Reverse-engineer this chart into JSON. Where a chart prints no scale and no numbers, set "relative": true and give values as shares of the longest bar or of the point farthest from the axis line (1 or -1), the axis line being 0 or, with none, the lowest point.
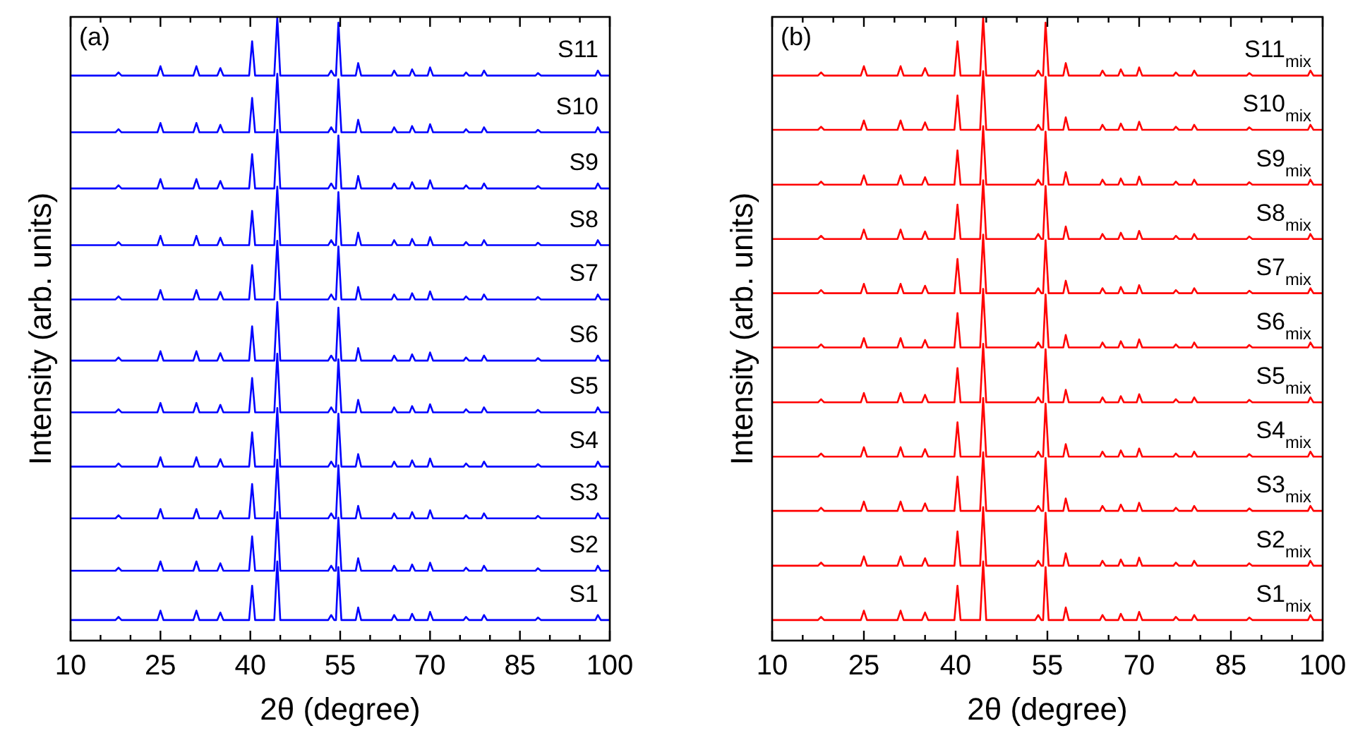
{
  "chart_data": [
    {
      "type": "line",
      "title": "(a)",
      "xlabel": "2θ (degree)",
      "ylabel": "Intensity (arb. units)",
      "relative": true,
      "xlim": [
        10,
        100
      ],
      "xticks": [
        10,
        {
          "value": 15,
          "label": null
        },
        {
          "value": 20,
          "label": null
        },
        25,
        {
          "value": 30,
          "label": null
        },
        {
          "value": 35,
          "label": null
        },
        40,
        {
          "value": 45,
          "label": null
        },
        {
          "value": 50,
          "label": null
        },
        55,
        {
          "value": 60,
          "label": null
        },
        {
          "value": 65,
          "label": null
        },
        70,
        {
          "value": 75,
          "label": null
        },
        {
          "value": 80,
          "label": null
        },
        85,
        {
          "value": 90,
          "label": null
        },
        {
          "value": 95,
          "label": null
        },
        100
      ],
      "x": [
        10,
        17.5,
        18,
        18.5,
        24.5,
        25,
        25.5,
        30.5,
        31,
        31.5,
        34.5,
        35,
        35.5,
        39.8,
        40.3,
        40.8,
        44,
        44.5,
        45,
        53,
        53.5,
        54,
        54.3,
        54.7,
        55.2,
        57.6,
        58,
        58.5,
        63.6,
        64,
        64.5,
        66.6,
        67,
        67.5,
        69.6,
        70,
        70.5,
        75.6,
        76,
        76.5,
        78.6,
        79,
        79.5,
        87.6,
        88,
        88.5,
        97.6,
        98,
        98.5,
        100
      ],
      "series": [
        {
          "name": "S1",
          "color": "#0000ff",
          "values": [
            0.033,
            0.033,
            0.038,
            0.033,
            0.033,
            0.048,
            0.033,
            0.033,
            0.048,
            0.033,
            0.033,
            0.045,
            0.033,
            0.033,
            0.088,
            0.033,
            0.033,
            0.127,
            0.033,
            0.033,
            0.041,
            0.033,
            0.033,
            0.118,
            0.033,
            0.033,
            0.053,
            0.033,
            0.033,
            0.041,
            0.033,
            0.033,
            0.043,
            0.033,
            0.033,
            0.046,
            0.033,
            0.033,
            0.038,
            0.033,
            0.033,
            0.041,
            0.033,
            0.033,
            0.037,
            0.033,
            0.033,
            0.041,
            0.033,
            0.033
          ]
        },
        {
          "name": "S2",
          "color": "#0000ff",
          "values": [
            0.112,
            0.112,
            0.117,
            0.112,
            0.112,
            0.127,
            0.112,
            0.112,
            0.127,
            0.112,
            0.112,
            0.124,
            0.112,
            0.112,
            0.167,
            0.112,
            0.112,
            0.206,
            0.112,
            0.112,
            0.12,
            0.112,
            0.112,
            0.197,
            0.112,
            0.112,
            0.132,
            0.112,
            0.112,
            0.12,
            0.112,
            0.112,
            0.122,
            0.112,
            0.112,
            0.125,
            0.112,
            0.112,
            0.117,
            0.112,
            0.112,
            0.12,
            0.112,
            0.112,
            0.116,
            0.112,
            0.112,
            0.12,
            0.112,
            0.112
          ]
        },
        {
          "name": "S3",
          "color": "#0000ff",
          "values": [
            0.196,
            0.196,
            0.201,
            0.196,
            0.196,
            0.211,
            0.196,
            0.196,
            0.211,
            0.196,
            0.196,
            0.208,
            0.196,
            0.196,
            0.251,
            0.196,
            0.196,
            0.29,
            0.196,
            0.196,
            0.204,
            0.196,
            0.196,
            0.281,
            0.196,
            0.196,
            0.216,
            0.196,
            0.196,
            0.204,
            0.196,
            0.196,
            0.206,
            0.196,
            0.196,
            0.209,
            0.196,
            0.196,
            0.201,
            0.196,
            0.196,
            0.204,
            0.196,
            0.196,
            0.2,
            0.196,
            0.196,
            0.204,
            0.196,
            0.196
          ]
        },
        {
          "name": "S4",
          "color": "#0000ff",
          "values": [
            0.279,
            0.279,
            0.284,
            0.279,
            0.279,
            0.294,
            0.279,
            0.279,
            0.294,
            0.279,
            0.279,
            0.291,
            0.279,
            0.279,
            0.334,
            0.279,
            0.279,
            0.373,
            0.279,
            0.279,
            0.287,
            0.279,
            0.279,
            0.364,
            0.279,
            0.279,
            0.299,
            0.279,
            0.279,
            0.287,
            0.279,
            0.279,
            0.289,
            0.279,
            0.279,
            0.292,
            0.279,
            0.279,
            0.284,
            0.279,
            0.279,
            0.287,
            0.279,
            0.279,
            0.283,
            0.279,
            0.279,
            0.287,
            0.279,
            0.279
          ]
        },
        {
          "name": "S5",
          "color": "#0000ff",
          "values": [
            0.366,
            0.366,
            0.371,
            0.366,
            0.366,
            0.381,
            0.366,
            0.366,
            0.381,
            0.366,
            0.366,
            0.378,
            0.366,
            0.366,
            0.421,
            0.366,
            0.366,
            0.46,
            0.366,
            0.366,
            0.374,
            0.366,
            0.366,
            0.451,
            0.366,
            0.366,
            0.386,
            0.366,
            0.366,
            0.374,
            0.366,
            0.366,
            0.376,
            0.366,
            0.366,
            0.379,
            0.366,
            0.366,
            0.371,
            0.366,
            0.366,
            0.374,
            0.366,
            0.366,
            0.37,
            0.366,
            0.366,
            0.374,
            0.366,
            0.366
          ]
        },
        {
          "name": "S6",
          "color": "#0000ff",
          "values": [
            0.449,
            0.449,
            0.454,
            0.449,
            0.449,
            0.464,
            0.449,
            0.449,
            0.464,
            0.449,
            0.449,
            0.461,
            0.449,
            0.449,
            0.504,
            0.449,
            0.449,
            0.543,
            0.449,
            0.449,
            0.457,
            0.449,
            0.449,
            0.534,
            0.449,
            0.449,
            0.469,
            0.449,
            0.449,
            0.457,
            0.449,
            0.449,
            0.459,
            0.449,
            0.449,
            0.462,
            0.449,
            0.449,
            0.454,
            0.449,
            0.449,
            0.457,
            0.449,
            0.449,
            0.453,
            0.449,
            0.449,
            0.457,
            0.449,
            0.449
          ]
        },
        {
          "name": "S7",
          "color": "#0000ff",
          "values": [
            0.547,
            0.547,
            0.552,
            0.547,
            0.547,
            0.562,
            0.547,
            0.547,
            0.562,
            0.547,
            0.547,
            0.559,
            0.547,
            0.547,
            0.602,
            0.547,
            0.547,
            0.641,
            0.547,
            0.547,
            0.555,
            0.547,
            0.547,
            0.632,
            0.547,
            0.547,
            0.567,
            0.547,
            0.547,
            0.555,
            0.547,
            0.547,
            0.557,
            0.547,
            0.547,
            0.56,
            0.547,
            0.547,
            0.552,
            0.547,
            0.547,
            0.555,
            0.547,
            0.547,
            0.551,
            0.547,
            0.547,
            0.555,
            0.547,
            0.547
          ]
        },
        {
          "name": "S8",
          "color": "#0000ff",
          "values": [
            0.634,
            0.634,
            0.639,
            0.634,
            0.634,
            0.649,
            0.634,
            0.634,
            0.649,
            0.634,
            0.634,
            0.646,
            0.634,
            0.634,
            0.689,
            0.634,
            0.634,
            0.728,
            0.634,
            0.634,
            0.642,
            0.634,
            0.634,
            0.719,
            0.634,
            0.634,
            0.654,
            0.634,
            0.634,
            0.642,
            0.634,
            0.634,
            0.644,
            0.634,
            0.634,
            0.647,
            0.634,
            0.634,
            0.639,
            0.634,
            0.634,
            0.642,
            0.634,
            0.634,
            0.638,
            0.634,
            0.634,
            0.642,
            0.634,
            0.634
          ]
        },
        {
          "name": "S9",
          "color": "#0000ff",
          "values": [
            0.725,
            0.725,
            0.73,
            0.725,
            0.725,
            0.74,
            0.725,
            0.725,
            0.74,
            0.725,
            0.725,
            0.737,
            0.725,
            0.725,
            0.78,
            0.725,
            0.725,
            0.819,
            0.725,
            0.725,
            0.733,
            0.725,
            0.725,
            0.81,
            0.725,
            0.725,
            0.745,
            0.725,
            0.725,
            0.733,
            0.725,
            0.725,
            0.735,
            0.725,
            0.725,
            0.738,
            0.725,
            0.725,
            0.73,
            0.725,
            0.725,
            0.733,
            0.725,
            0.725,
            0.729,
            0.725,
            0.725,
            0.733,
            0.725,
            0.725
          ]
        },
        {
          "name": "S10",
          "color": "#0000ff",
          "values": [
            0.815,
            0.815,
            0.82,
            0.815,
            0.815,
            0.83,
            0.815,
            0.815,
            0.83,
            0.815,
            0.815,
            0.827,
            0.815,
            0.815,
            0.87,
            0.815,
            0.815,
            0.909,
            0.815,
            0.815,
            0.823,
            0.815,
            0.815,
            0.9,
            0.815,
            0.815,
            0.835,
            0.815,
            0.815,
            0.823,
            0.815,
            0.815,
            0.825,
            0.815,
            0.815,
            0.828,
            0.815,
            0.815,
            0.82,
            0.815,
            0.815,
            0.823,
            0.815,
            0.815,
            0.819,
            0.815,
            0.815,
            0.823,
            0.815,
            0.815
          ]
        },
        {
          "name": "S11",
          "color": "#0000ff",
          "values": [
            0.906,
            0.906,
            0.911,
            0.906,
            0.906,
            0.921,
            0.906,
            0.906,
            0.921,
            0.906,
            0.906,
            0.918,
            0.906,
            0.906,
            0.961,
            0.906,
            0.906,
            1,
            0.906,
            0.906,
            0.914,
            0.906,
            0.906,
            0.991,
            0.906,
            0.906,
            0.926,
            0.906,
            0.906,
            0.914,
            0.906,
            0.906,
            0.916,
            0.906,
            0.906,
            0.919,
            0.906,
            0.906,
            0.911,
            0.906,
            0.906,
            0.914,
            0.906,
            0.906,
            0.91,
            0.906,
            0.906,
            0.914,
            0.906,
            0.906
          ]
        }
      ]
    },
    {
      "type": "line",
      "title": "(b)",
      "xlabel": "2θ (degree)",
      "ylabel": "Intensity (arb. units)",
      "relative": true,
      "xlim": [
        10,
        100
      ],
      "xticks": [
        10,
        {
          "value": 15,
          "label": null
        },
        {
          "value": 20,
          "label": null
        },
        25,
        {
          "value": 30,
          "label": null
        },
        {
          "value": 35,
          "label": null
        },
        40,
        {
          "value": 45,
          "label": null
        },
        {
          "value": 50,
          "label": null
        },
        55,
        {
          "value": 60,
          "label": null
        },
        {
          "value": 65,
          "label": null
        },
        70,
        {
          "value": 75,
          "label": null
        },
        {
          "value": 80,
          "label": null
        },
        85,
        {
          "value": 90,
          "label": null
        },
        {
          "value": 95,
          "label": null
        },
        100
      ],
      "x": [
        10,
        17.5,
        18,
        18.5,
        24.5,
        25,
        25.5,
        30.5,
        31,
        31.5,
        34.5,
        35,
        35.5,
        39.8,
        40.3,
        40.8,
        44,
        44.5,
        45,
        53,
        53.5,
        54,
        54.3,
        54.7,
        55.2,
        57.6,
        58,
        58.5,
        63.6,
        64,
        64.5,
        66.6,
        67,
        67.5,
        69.6,
        70,
        70.5,
        75.6,
        76,
        76.5,
        78.6,
        79,
        79.5,
        87.6,
        88,
        88.5,
        97.6,
        98,
        98.5,
        100
      ],
      "series": [
        {
          "name": "S1$_{mix}$",
          "color": "#ff0000",
          "values": [
            0.033,
            0.033,
            0.038,
            0.033,
            0.033,
            0.048,
            0.033,
            0.033,
            0.048,
            0.033,
            0.033,
            0.045,
            0.033,
            0.033,
            0.088,
            0.033,
            0.033,
            0.127,
            0.033,
            0.033,
            0.041,
            0.033,
            0.033,
            0.118,
            0.033,
            0.033,
            0.053,
            0.033,
            0.033,
            0.041,
            0.033,
            0.033,
            0.043,
            0.033,
            0.033,
            0.046,
            0.033,
            0.033,
            0.038,
            0.033,
            0.033,
            0.041,
            0.033,
            0.033,
            0.037,
            0.033,
            0.033,
            0.041,
            0.033,
            0.033
          ]
        },
        {
          "name": "S2$_{mix}$",
          "color": "#ff0000",
          "values": [
            0.12,
            0.12,
            0.125,
            0.12,
            0.12,
            0.135,
            0.12,
            0.12,
            0.135,
            0.12,
            0.12,
            0.132,
            0.12,
            0.12,
            0.175,
            0.12,
            0.12,
            0.214,
            0.12,
            0.12,
            0.128,
            0.12,
            0.12,
            0.205,
            0.12,
            0.12,
            0.14,
            0.12,
            0.12,
            0.128,
            0.12,
            0.12,
            0.13,
            0.12,
            0.12,
            0.133,
            0.12,
            0.12,
            0.125,
            0.12,
            0.12,
            0.128,
            0.12,
            0.12,
            0.124,
            0.12,
            0.12,
            0.128,
            0.12,
            0.12
          ]
        },
        {
          "name": "S3$_{mix}$",
          "color": "#ff0000",
          "values": [
            0.208,
            0.208,
            0.213,
            0.208,
            0.208,
            0.223,
            0.208,
            0.208,
            0.223,
            0.208,
            0.208,
            0.22,
            0.208,
            0.208,
            0.263,
            0.208,
            0.208,
            0.302,
            0.208,
            0.208,
            0.216,
            0.208,
            0.208,
            0.293,
            0.208,
            0.208,
            0.228,
            0.208,
            0.208,
            0.216,
            0.208,
            0.208,
            0.218,
            0.208,
            0.208,
            0.221,
            0.208,
            0.208,
            0.213,
            0.208,
            0.208,
            0.216,
            0.208,
            0.208,
            0.212,
            0.208,
            0.208,
            0.216,
            0.208,
            0.208
          ]
        },
        {
          "name": "S4$_{mix}$",
          "color": "#ff0000",
          "values": [
            0.295,
            0.295,
            0.3,
            0.295,
            0.295,
            0.31,
            0.295,
            0.295,
            0.31,
            0.295,
            0.295,
            0.307,
            0.295,
            0.295,
            0.35,
            0.295,
            0.295,
            0.389,
            0.295,
            0.295,
            0.303,
            0.295,
            0.295,
            0.38,
            0.295,
            0.295,
            0.315,
            0.295,
            0.295,
            0.303,
            0.295,
            0.295,
            0.305,
            0.295,
            0.295,
            0.308,
            0.295,
            0.295,
            0.3,
            0.295,
            0.295,
            0.303,
            0.295,
            0.295,
            0.299,
            0.295,
            0.295,
            0.303,
            0.295,
            0.295
          ]
        },
        {
          "name": "S5$_{mix}$",
          "color": "#ff0000",
          "values": [
            0.382,
            0.382,
            0.387,
            0.382,
            0.382,
            0.397,
            0.382,
            0.382,
            0.397,
            0.382,
            0.382,
            0.394,
            0.382,
            0.382,
            0.437,
            0.382,
            0.382,
            0.476,
            0.382,
            0.382,
            0.39,
            0.382,
            0.382,
            0.467,
            0.382,
            0.382,
            0.402,
            0.382,
            0.382,
            0.39,
            0.382,
            0.382,
            0.392,
            0.382,
            0.382,
            0.395,
            0.382,
            0.382,
            0.387,
            0.382,
            0.382,
            0.39,
            0.382,
            0.382,
            0.386,
            0.382,
            0.382,
            0.39,
            0.382,
            0.382
          ]
        },
        {
          "name": "S6$_{mix}$",
          "color": "#ff0000",
          "values": [
            0.47,
            0.47,
            0.475,
            0.47,
            0.47,
            0.485,
            0.47,
            0.47,
            0.485,
            0.47,
            0.47,
            0.482,
            0.47,
            0.47,
            0.525,
            0.47,
            0.47,
            0.564,
            0.47,
            0.47,
            0.478,
            0.47,
            0.47,
            0.555,
            0.47,
            0.47,
            0.49,
            0.47,
            0.47,
            0.478,
            0.47,
            0.47,
            0.48,
            0.47,
            0.47,
            0.483,
            0.47,
            0.47,
            0.475,
            0.47,
            0.47,
            0.478,
            0.47,
            0.47,
            0.474,
            0.47,
            0.47,
            0.478,
            0.47,
            0.47
          ]
        },
        {
          "name": "S7$_{mix}$",
          "color": "#ff0000",
          "values": [
            0.557,
            0.557,
            0.562,
            0.557,
            0.557,
            0.572,
            0.557,
            0.557,
            0.572,
            0.557,
            0.557,
            0.569,
            0.557,
            0.557,
            0.612,
            0.557,
            0.557,
            0.651,
            0.557,
            0.557,
            0.565,
            0.557,
            0.557,
            0.642,
            0.557,
            0.557,
            0.577,
            0.557,
            0.557,
            0.565,
            0.557,
            0.557,
            0.567,
            0.557,
            0.557,
            0.57,
            0.557,
            0.557,
            0.562,
            0.557,
            0.557,
            0.565,
            0.557,
            0.557,
            0.561,
            0.557,
            0.557,
            0.565,
            0.557,
            0.557
          ]
        },
        {
          "name": "S8$_{mix}$",
          "color": "#ff0000",
          "values": [
            0.644,
            0.644,
            0.649,
            0.644,
            0.644,
            0.659,
            0.644,
            0.644,
            0.659,
            0.644,
            0.644,
            0.656,
            0.644,
            0.644,
            0.699,
            0.644,
            0.644,
            0.738,
            0.644,
            0.644,
            0.652,
            0.644,
            0.644,
            0.729,
            0.644,
            0.644,
            0.664,
            0.644,
            0.644,
            0.652,
            0.644,
            0.644,
            0.654,
            0.644,
            0.644,
            0.657,
            0.644,
            0.644,
            0.649,
            0.644,
            0.644,
            0.652,
            0.644,
            0.644,
            0.648,
            0.644,
            0.644,
            0.652,
            0.644,
            0.644
          ]
        },
        {
          "name": "S9$_{mix}$",
          "color": "#ff0000",
          "values": [
            0.731,
            0.731,
            0.736,
            0.731,
            0.731,
            0.746,
            0.731,
            0.731,
            0.746,
            0.731,
            0.731,
            0.743,
            0.731,
            0.731,
            0.786,
            0.731,
            0.731,
            0.825,
            0.731,
            0.731,
            0.739,
            0.731,
            0.731,
            0.816,
            0.731,
            0.731,
            0.751,
            0.731,
            0.731,
            0.739,
            0.731,
            0.731,
            0.741,
            0.731,
            0.731,
            0.744,
            0.731,
            0.731,
            0.736,
            0.731,
            0.731,
            0.739,
            0.731,
            0.731,
            0.735,
            0.731,
            0.731,
            0.739,
            0.731,
            0.731
          ]
        },
        {
          "name": "S10$_{mix}$",
          "color": "#ff0000",
          "values": [
            0.819,
            0.819,
            0.824,
            0.819,
            0.819,
            0.834,
            0.819,
            0.819,
            0.834,
            0.819,
            0.819,
            0.831,
            0.819,
            0.819,
            0.874,
            0.819,
            0.819,
            0.913,
            0.819,
            0.819,
            0.827,
            0.819,
            0.819,
            0.904,
            0.819,
            0.819,
            0.839,
            0.819,
            0.819,
            0.827,
            0.819,
            0.819,
            0.829,
            0.819,
            0.819,
            0.832,
            0.819,
            0.819,
            0.824,
            0.819,
            0.819,
            0.827,
            0.819,
            0.819,
            0.823,
            0.819,
            0.819,
            0.827,
            0.819,
            0.819
          ]
        },
        {
          "name": "S11$_{mix}$",
          "color": "#ff0000",
          "values": [
            0.906,
            0.906,
            0.911,
            0.906,
            0.906,
            0.921,
            0.906,
            0.906,
            0.921,
            0.906,
            0.906,
            0.918,
            0.906,
            0.906,
            0.961,
            0.906,
            0.906,
            1,
            0.906,
            0.906,
            0.914,
            0.906,
            0.906,
            0.991,
            0.906,
            0.906,
            0.926,
            0.906,
            0.906,
            0.914,
            0.906,
            0.906,
            0.916,
            0.906,
            0.906,
            0.919,
            0.906,
            0.906,
            0.911,
            0.906,
            0.906,
            0.914,
            0.906,
            0.906,
            0.91,
            0.906,
            0.906,
            0.914,
            0.906,
            0.906
          ]
        }
      ]
    }
  ]
}
